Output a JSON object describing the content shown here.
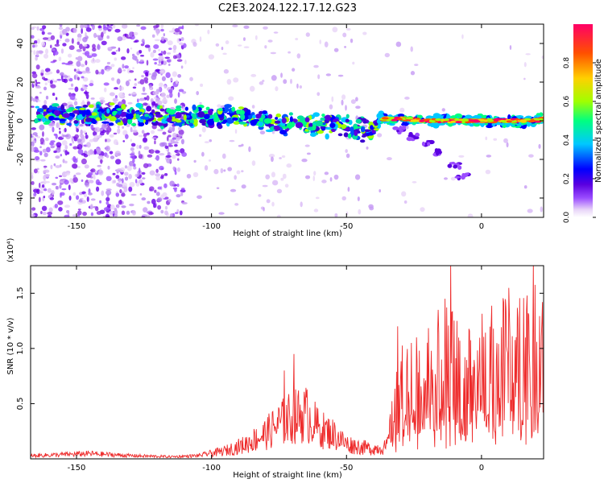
{
  "title": "C2E3.2024.122.17.12.G23",
  "colors": {
    "spectrogram_scatter": "#8a2be2",
    "snr_line": "#ee2a2a",
    "axis": "#000000"
  },
  "chart_data": [
    {
      "type": "heatmap",
      "xlabel": "Height of straight line (km)",
      "ylabel": "Frequency (Hz)",
      "xlim": [
        -167,
        23
      ],
      "ylim": [
        -50,
        50
      ],
      "xticks": [
        -150,
        -100,
        -50,
        0
      ],
      "xtick_labels": [
        "-150",
        "-100",
        "-50",
        "0"
      ],
      "yticks": [
        -40,
        -20,
        0,
        20,
        40
      ],
      "ytick_labels": [
        "-40",
        "-20",
        "0",
        "20",
        "40"
      ],
      "colorbar": {
        "label": "Normalized spectral amplitude",
        "range": [
          0,
          1
        ],
        "ticks": [
          0.0,
          0.2,
          0.4,
          0.6,
          0.8
        ],
        "tick_labels": [
          "0.0",
          "0.2",
          "0.4",
          "0.6",
          "0.8"
        ],
        "colormap": [
          "#ffffff",
          "#e8d4f8",
          "#9b4dff",
          "#5a00e0",
          "#0000ff",
          "#00c8ff",
          "#00ff80",
          "#a0ff00",
          "#ffd000",
          "#ff5000",
          "#ff0066"
        ]
      },
      "ridge": [
        {
          "x": -163,
          "y": 4
        },
        {
          "x": -150,
          "y": 3
        },
        {
          "x": -130,
          "y": 3
        },
        {
          "x": -120,
          "y": 2
        },
        {
          "x": -110,
          "y": 2
        },
        {
          "x": -100,
          "y": 2
        },
        {
          "x": -90,
          "y": 3
        },
        {
          "x": -80,
          "y": 0
        },
        {
          "x": -70,
          "y": -2
        },
        {
          "x": -60,
          "y": -2
        },
        {
          "x": -50,
          "y": -3
        },
        {
          "x": -40,
          "y": -6
        },
        {
          "x": -38,
          "y": 1
        },
        {
          "x": -30,
          "y": 1
        },
        {
          "x": -20,
          "y": 0
        },
        {
          "x": -10,
          "y": 0
        },
        {
          "x": 0,
          "y": 0
        },
        {
          "x": 10,
          "y": 0
        },
        {
          "x": 20,
          "y": 0
        },
        {
          "x": 23,
          "y": 1
        }
      ],
      "tail": [
        {
          "x": -30,
          "y": -5
        },
        {
          "x": -25,
          "y": -8
        },
        {
          "x": -20,
          "y": -12
        },
        {
          "x": -15,
          "y": -16
        },
        {
          "x": -10,
          "y": -23
        },
        {
          "x": -7,
          "y": -29
        }
      ]
    },
    {
      "type": "line",
      "xlabel": "Height of straight line (km)",
      "ylabel": "SNR (10 * v/v)",
      "y_multiplier": "(x10⁴)",
      "xlim": [
        -167,
        23
      ],
      "ylim": [
        0,
        1.75
      ],
      "xticks": [
        -150,
        -100,
        -50,
        0
      ],
      "xtick_labels": [
        "-150",
        "-100",
        "-50",
        "0"
      ],
      "yticks": [
        0.5,
        1.0,
        1.5
      ],
      "ytick_labels": [
        "0.5",
        "1.0",
        "1.5"
      ],
      "series": [
        {
          "values_envelope": [
            {
              "x": -167,
              "y": 0.03
            },
            {
              "x": -155,
              "y": 0.04
            },
            {
              "x": -145,
              "y": 0.05
            },
            {
              "x": -130,
              "y": 0.03
            },
            {
              "x": -115,
              "y": 0.02
            },
            {
              "x": -105,
              "y": 0.03
            },
            {
              "x": -95,
              "y": 0.08
            },
            {
              "x": -88,
              "y": 0.14
            },
            {
              "x": -80,
              "y": 0.25
            },
            {
              "x": -75,
              "y": 0.35
            },
            {
              "x": -70,
              "y": 0.42
            },
            {
              "x": -65,
              "y": 0.45
            },
            {
              "x": -60,
              "y": 0.3
            },
            {
              "x": -55,
              "y": 0.25
            },
            {
              "x": -50,
              "y": 0.15
            },
            {
              "x": -45,
              "y": 0.12
            },
            {
              "x": -40,
              "y": 0.1
            },
            {
              "x": -35,
              "y": 0.12
            },
            {
              "x": -33,
              "y": 0.4
            },
            {
              "x": -30,
              "y": 0.7
            },
            {
              "x": -25,
              "y": 0.8
            },
            {
              "x": -20,
              "y": 0.85
            },
            {
              "x": -15,
              "y": 0.75
            },
            {
              "x": -12,
              "y": 1.0
            },
            {
              "x": -8,
              "y": 0.85
            },
            {
              "x": -5,
              "y": 0.8
            },
            {
              "x": 0,
              "y": 0.88
            },
            {
              "x": 5,
              "y": 0.95
            },
            {
              "x": 10,
              "y": 1.05
            },
            {
              "x": 15,
              "y": 1.1
            },
            {
              "x": 20,
              "y": 1.22
            },
            {
              "x": 23,
              "y": 1.3
            }
          ],
          "peaks": [
            {
              "x": -69.5,
              "y": 0.95
            },
            {
              "x": -73,
              "y": 0.8
            },
            {
              "x": -31,
              "y": 1.2
            },
            {
              "x": -16,
              "y": 1.35
            },
            {
              "x": -13.5,
              "y": 1.45
            },
            {
              "x": -11.5,
              "y": 1.78
            },
            {
              "x": -9,
              "y": 1.25
            },
            {
              "x": 22.5,
              "y": 1.42
            }
          ]
        }
      ]
    }
  ]
}
